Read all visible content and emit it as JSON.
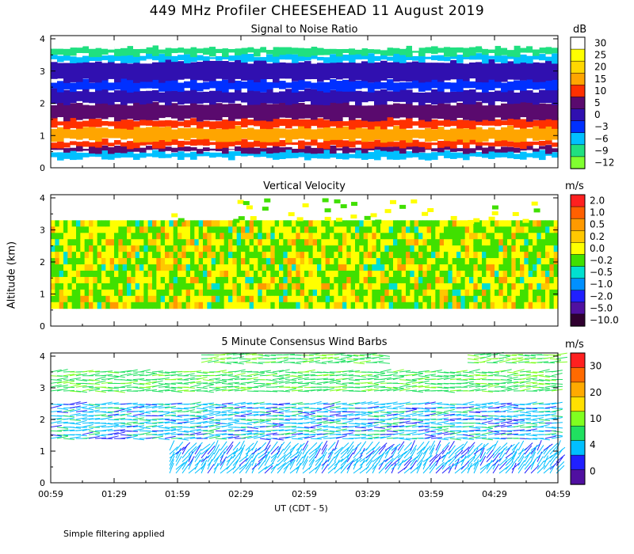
{
  "title": "449 MHz Profiler CHEESEHEAD 11 August 2019",
  "y_axis_label": "Altitude (km)",
  "x_axis_label": "UT  (CDT - 5)",
  "x_ticks": [
    "00:59",
    "01:29",
    "01:59",
    "02:29",
    "02:59",
    "03:29",
    "03:59",
    "04:29",
    "04:59"
  ],
  "footer": "Simple filtering applied",
  "chart_data": [
    {
      "type": "heatmap",
      "title": "Signal to Noise Ratio",
      "units": "dB",
      "y_ticks": [
        "0",
        "1",
        "2",
        "3",
        "4"
      ],
      "ylim": [
        0,
        4
      ],
      "xlim": [
        "00:59",
        "04:59"
      ],
      "colorbar": {
        "labels": [
          "30",
          "25",
          "20",
          "15",
          "10",
          "5",
          "0",
          "−3",
          "−6",
          "−9",
          "−12"
        ],
        "colors": [
          "#ffffff",
          "#ffff00",
          "#ffd700",
          "#ffa500",
          "#ff3000",
          "#5a0a6e",
          "#3010b0",
          "#0030ff",
          "#00c0ff",
          "#20e080",
          "#80ff30"
        ]
      },
      "layers": [
        {
          "alt_min": 0.3,
          "alt_max": 0.5,
          "snr": -6
        },
        {
          "alt_min": 0.5,
          "alt_max": 0.65,
          "snr": 5
        },
        {
          "alt_min": 0.65,
          "alt_max": 0.85,
          "snr": 10
        },
        {
          "alt_min": 0.85,
          "alt_max": 1.25,
          "snr": 15
        },
        {
          "alt_min": 1.25,
          "alt_max": 1.5,
          "snr": 10
        },
        {
          "alt_min": 1.5,
          "alt_max": 2.0,
          "snr": 5
        },
        {
          "alt_min": 2.0,
          "alt_max": 2.4,
          "snr": 0
        },
        {
          "alt_min": 2.4,
          "alt_max": 2.7,
          "snr": -3
        },
        {
          "alt_min": 2.7,
          "alt_max": 3.3,
          "snr": 0
        },
        {
          "alt_min": 3.3,
          "alt_max": 3.5,
          "snr": -6
        },
        {
          "alt_min": 3.5,
          "alt_max": 3.75,
          "snr": -9
        },
        {
          "alt_min": 3.75,
          "alt_max": 4.1,
          "snr": 30
        }
      ]
    },
    {
      "type": "heatmap",
      "title": "Vertical Velocity",
      "units": "m/s",
      "y_ticks": [
        "0",
        "1",
        "2",
        "3",
        "4"
      ],
      "ylim": [
        0,
        4
      ],
      "colorbar": {
        "labels": [
          "2.0",
          "1.0",
          "0.5",
          "0.2",
          "0.0",
          "−0.2",
          "−0.5",
          "−1.0",
          "−2.0",
          "−5.0",
          "−10.0"
        ],
        "colors": [
          "#ff2020",
          "#ff6000",
          "#ff9a00",
          "#ffc800",
          "#ffff00",
          "#40e000",
          "#00e0d0",
          "#0090ff",
          "#2020ff",
          "#5010a0",
          "#300030"
        ]
      },
      "data_region": {
        "alt_min": 0.55,
        "alt_max": 3.3
      },
      "typical_values": [
        0.0,
        -0.2,
        0.2,
        0.5
      ]
    },
    {
      "type": "scatter",
      "title": "5 Minute Consensus Wind Barbs",
      "units": "m/s",
      "y_ticks": [
        "0",
        "1",
        "2",
        "3",
        "4"
      ],
      "ylim": [
        0,
        4
      ],
      "colorbar": {
        "labels": [
          "30",
          "20",
          "10",
          "4",
          "0"
        ],
        "colors": [
          "#ff2020",
          "#ff6a00",
          "#ffaa00",
          "#ffe000",
          "#80ff20",
          "#20e060",
          "#00c0ff",
          "#2020ff",
          "#5010a0"
        ]
      },
      "wind_layers": [
        {
          "alt_min": 2.9,
          "alt_max": 3.6,
          "speed": 10
        },
        {
          "alt_min": 1.4,
          "alt_max": 2.6,
          "speed": 8
        },
        {
          "alt_min": 0.3,
          "alt_max": 1.1,
          "speed": 6
        },
        {
          "alt_min": 3.8,
          "alt_max": 4.1,
          "speed": 12
        }
      ]
    }
  ]
}
